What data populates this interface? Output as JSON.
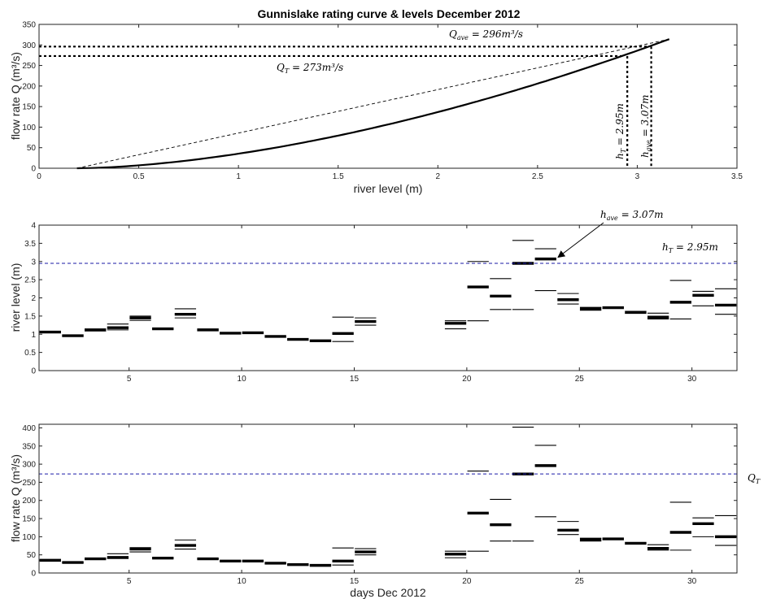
{
  "figure_title": "Gunnislake rating curve & levels December 2012",
  "colors": {
    "axis": "#222222",
    "line": "#000000",
    "threshold": "#1a1aa6"
  },
  "chart_data": [
    {
      "type": "line",
      "id": "rating",
      "xlabel": "river level (m)",
      "ylabel": "flow rate Q (m³/s)",
      "xlim": [
        0,
        3.5
      ],
      "ylim": [
        0,
        350
      ],
      "xticks": [
        0,
        0.5,
        1,
        1.5,
        2,
        2.5,
        3,
        3.5
      ],
      "xtick_labels": [
        "0",
        "0.5",
        "1",
        "1.5",
        "2",
        "2.5",
        "3",
        "3.5"
      ],
      "yticks": [
        0,
        50,
        100,
        150,
        200,
        250,
        300,
        350
      ],
      "ytick_labels": [
        "0",
        "50",
        "100",
        "150",
        "200",
        "250",
        "300",
        "350"
      ],
      "curve": {
        "h0": 0.19,
        "h1": 3.16,
        "qmax": 314,
        "exponent": 1.68
      },
      "annotations": {
        "Q_ave": "Q_ave = 296m³/s",
        "Q_T": "Q_T = 273m³/s",
        "h_T": "h_T = 2.95m",
        "h_ave": "h_ave = 3.07m"
      },
      "reference_values": {
        "Q_ave": 296,
        "Q_T": 273,
        "h_T": 2.95,
        "h_ave": 3.07
      }
    },
    {
      "type": "range",
      "id": "levels",
      "ylabel": "river level (m)",
      "xlim": [
        1,
        32
      ],
      "ylim": [
        0,
        4
      ],
      "xticks": [
        5,
        10,
        15,
        20,
        25,
        30
      ],
      "xtick_labels": [
        "5",
        "10",
        "15",
        "20",
        "25",
        "30"
      ],
      "yticks": [
        0,
        0.5,
        1,
        1.5,
        2,
        2.5,
        3,
        3.5,
        4
      ],
      "ytick_labels": [
        "0",
        "0.5",
        "1",
        "1.5",
        "2",
        "2.5",
        "3",
        "3.5",
        "4"
      ],
      "threshold": 2.95,
      "threshold_label": "h_T = 2.95m",
      "arrow_label": "h_ave = 3.07m",
      "arrow_target": {
        "day": 23.5,
        "value": 3.07
      },
      "days": [
        {
          "day": 1,
          "mean": 1.06,
          "max": 1.08,
          "min": 1.04
        },
        {
          "day": 2,
          "mean": 0.96,
          "max": 0.98,
          "min": 0.94
        },
        {
          "day": 3,
          "mean": 1.12,
          "max": 1.14,
          "min": 1.09
        },
        {
          "day": 4,
          "mean": 1.18,
          "max": 1.28,
          "min": 1.12
        },
        {
          "day": 5,
          "mean": 1.45,
          "max": 1.5,
          "min": 1.38
        },
        {
          "day": 6,
          "mean": 1.15,
          "max": 1.17,
          "min": 1.13
        },
        {
          "day": 7,
          "mean": 1.55,
          "max": 1.7,
          "min": 1.45
        },
        {
          "day": 8,
          "mean": 1.12,
          "max": 1.14,
          "min": 1.1
        },
        {
          "day": 9,
          "mean": 1.03,
          "max": 1.05,
          "min": 1.01
        },
        {
          "day": 10,
          "mean": 1.04,
          "max": 1.06,
          "min": 1.02
        },
        {
          "day": 11,
          "mean": 0.94,
          "max": 0.96,
          "min": 0.92
        },
        {
          "day": 12,
          "mean": 0.86,
          "max": 0.88,
          "min": 0.84
        },
        {
          "day": 13,
          "mean": 0.82,
          "max": 0.84,
          "min": 0.8
        },
        {
          "day": 14,
          "mean": 1.02,
          "max": 1.47,
          "min": 0.8
        },
        {
          "day": 15,
          "mean": 1.35,
          "max": 1.45,
          "min": 1.25
        },
        {
          "day": 19,
          "mean": 1.3,
          "max": 1.37,
          "min": 1.15
        },
        {
          "day": 20,
          "mean": 2.3,
          "max": 3.0,
          "min": 1.37
        },
        {
          "day": 21,
          "mean": 2.05,
          "max": 2.53,
          "min": 1.68
        },
        {
          "day": 22,
          "mean": 2.95,
          "max": 3.58,
          "min": 1.68
        },
        {
          "day": 23,
          "mean": 3.07,
          "max": 3.35,
          "min": 2.2
        },
        {
          "day": 24,
          "mean": 1.95,
          "max": 2.12,
          "min": 1.83
        },
        {
          "day": 25,
          "mean": 1.7,
          "max": 1.74,
          "min": 1.66
        },
        {
          "day": 26,
          "mean": 1.73,
          "max": 1.75,
          "min": 1.71
        },
        {
          "day": 27,
          "mean": 1.6,
          "max": 1.63,
          "min": 1.58
        },
        {
          "day": 28,
          "mean": 1.47,
          "max": 1.58,
          "min": 1.42
        },
        {
          "day": 29,
          "mean": 1.88,
          "max": 2.48,
          "min": 1.42
        },
        {
          "day": 30,
          "mean": 2.07,
          "max": 2.18,
          "min": 1.78
        },
        {
          "day": 31,
          "mean": 1.8,
          "max": 2.25,
          "min": 1.55
        }
      ]
    },
    {
      "type": "range",
      "id": "flows",
      "xlabel": "days Dec 2012",
      "ylabel": "flow rate Q (m³/s)",
      "xlim": [
        1,
        32
      ],
      "ylim": [
        0,
        410
      ],
      "xticks": [
        5,
        10,
        15,
        20,
        25,
        30
      ],
      "xtick_labels": [
        "5",
        "10",
        "15",
        "20",
        "25",
        "30"
      ],
      "yticks": [
        0,
        50,
        100,
        150,
        200,
        250,
        300,
        350,
        400
      ],
      "ytick_labels": [
        "0",
        "50",
        "100",
        "150",
        "200",
        "250",
        "300",
        "350",
        "400"
      ],
      "threshold": 273,
      "threshold_label": "Q_T",
      "days": [
        {
          "day": 1,
          "mean": 35,
          "max": 36,
          "min": 34
        },
        {
          "day": 2,
          "mean": 29,
          "max": 30,
          "min": 28
        },
        {
          "day": 3,
          "mean": 39,
          "max": 40,
          "min": 38
        },
        {
          "day": 4,
          "mean": 43,
          "max": 53,
          "min": 40
        },
        {
          "day": 5,
          "mean": 66,
          "max": 70,
          "min": 58
        },
        {
          "day": 6,
          "mean": 41,
          "max": 42,
          "min": 40
        },
        {
          "day": 7,
          "mean": 76,
          "max": 91,
          "min": 66
        },
        {
          "day": 8,
          "mean": 39,
          "max": 40,
          "min": 38
        },
        {
          "day": 9,
          "mean": 33,
          "max": 34,
          "min": 32
        },
        {
          "day": 10,
          "mean": 33,
          "max": 35,
          "min": 32
        },
        {
          "day": 11,
          "mean": 27,
          "max": 28,
          "min": 26
        },
        {
          "day": 12,
          "mean": 23,
          "max": 24,
          "min": 22
        },
        {
          "day": 13,
          "mean": 21,
          "max": 22,
          "min": 20
        },
        {
          "day": 14,
          "mean": 33,
          "max": 69,
          "min": 22
        },
        {
          "day": 15,
          "mean": 58,
          "max": 67,
          "min": 50
        },
        {
          "day": 19,
          "mean": 52,
          "max": 60,
          "min": 42
        },
        {
          "day": 20,
          "mean": 165,
          "max": 281,
          "min": 60
        },
        {
          "day": 21,
          "mean": 133,
          "max": 203,
          "min": 88
        },
        {
          "day": 22,
          "mean": 273,
          "max": 402,
          "min": 88
        },
        {
          "day": 23,
          "mean": 296,
          "max": 352,
          "min": 155
        },
        {
          "day": 24,
          "mean": 118,
          "max": 142,
          "min": 106
        },
        {
          "day": 25,
          "mean": 92,
          "max": 96,
          "min": 88
        },
        {
          "day": 26,
          "mean": 94,
          "max": 96,
          "min": 92
        },
        {
          "day": 27,
          "mean": 82,
          "max": 84,
          "min": 80
        },
        {
          "day": 28,
          "mean": 68,
          "max": 78,
          "min": 63
        },
        {
          "day": 29,
          "mean": 112,
          "max": 195,
          "min": 63
        },
        {
          "day": 30,
          "mean": 136,
          "max": 152,
          "min": 100
        },
        {
          "day": 31,
          "mean": 100,
          "max": 158,
          "min": 76
        }
      ]
    }
  ]
}
